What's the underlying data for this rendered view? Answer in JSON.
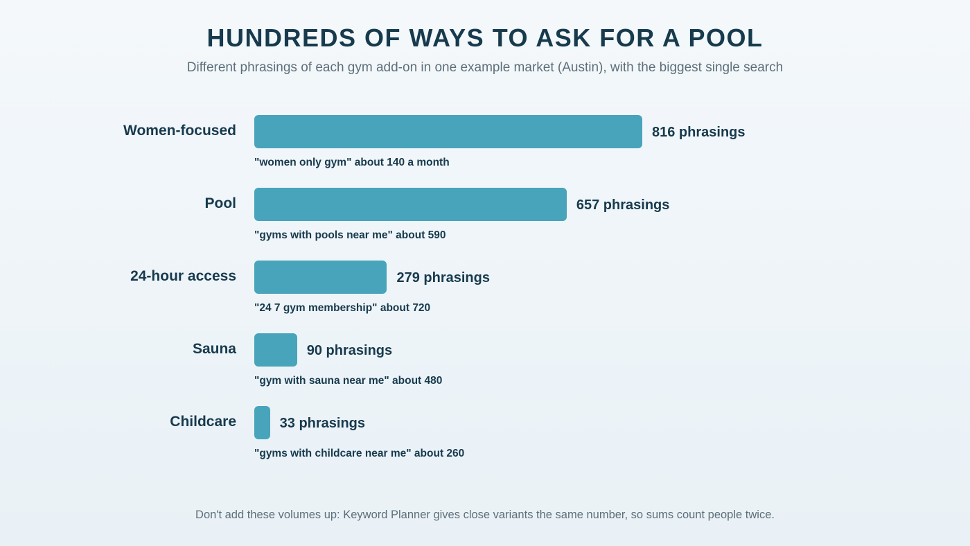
{
  "title": "HUNDREDS OF WAYS TO ASK FOR A POOL",
  "subtitle": "Different phrasings of each gym add-on in one example market (Austin), with the biggest single search",
  "footnote": "Don't add these volumes up: Keyword Planner gives close variants the same number, so sums count people twice.",
  "colors": {
    "bar": "#48a4ba",
    "text": "#173a4d",
    "muted": "#5d6f7a"
  },
  "chart_data": {
    "type": "bar",
    "orientation": "horizontal",
    "categories": [
      "Women-focused",
      "Pool",
      "24-hour access",
      "Sauna",
      "Childcare"
    ],
    "values": [
      816,
      657,
      279,
      90,
      33
    ],
    "value_labels": [
      "816 phrasings",
      "657 phrasings",
      "279 phrasings",
      "90 phrasings",
      "33 phrasings"
    ],
    "notes": [
      "\"women only gym\" about 140 a month",
      "\"gyms with pools near me\" about 590",
      "\"24 7 gym membership\" about 720",
      "\"gym with sauna near me\" about 480",
      "\"gyms with childcare near me\" about 260"
    ],
    "grid": false,
    "legend": "none"
  }
}
